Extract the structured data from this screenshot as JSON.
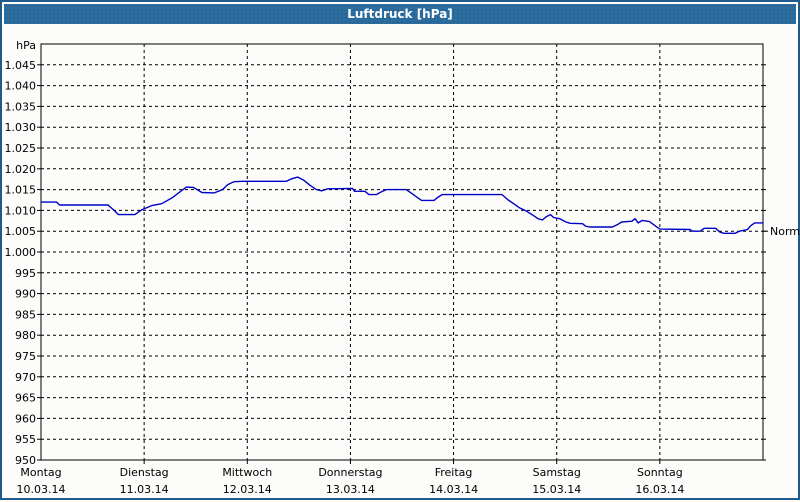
{
  "window": {
    "title": "Luftdruck [hPa]"
  },
  "colors": {
    "titlebar": "#2c6da0",
    "frame_border": "#1e5a8c",
    "background": "#fcfdfa",
    "series_line": "#0000c8",
    "grid": "#000000",
    "text": "#000000",
    "title_text": "#ffffff"
  },
  "chart_data": {
    "type": "line",
    "title": "Luftdruck [hPa]",
    "ylabel": "hPa",
    "ylim": [
      950,
      1050
    ],
    "grid": "dashed",
    "y_ticks": [
      {
        "value": 1045,
        "label": "1.045"
      },
      {
        "value": 1040,
        "label": "1.040"
      },
      {
        "value": 1035,
        "label": "1.035"
      },
      {
        "value": 1030,
        "label": "1.030"
      },
      {
        "value": 1025,
        "label": "1.025"
      },
      {
        "value": 1020,
        "label": "1.020"
      },
      {
        "value": 1015,
        "label": "1.015"
      },
      {
        "value": 1010,
        "label": "1.010"
      },
      {
        "value": 1005,
        "label": "1.005"
      },
      {
        "value": 1000,
        "label": "1.000"
      },
      {
        "value": 995,
        "label": "995"
      },
      {
        "value": 990,
        "label": "990"
      },
      {
        "value": 985,
        "label": "985"
      },
      {
        "value": 980,
        "label": "980"
      },
      {
        "value": 975,
        "label": "975"
      },
      {
        "value": 970,
        "label": "970"
      },
      {
        "value": 965,
        "label": "965"
      },
      {
        "value": 960,
        "label": "960"
      },
      {
        "value": 955,
        "label": "955"
      },
      {
        "value": 950,
        "label": "950"
      }
    ],
    "days": [
      {
        "name": "Montag",
        "date": "10.03.14"
      },
      {
        "name": "Dienstag",
        "date": "11.03.14"
      },
      {
        "name": "Mittwoch",
        "date": "12.03.14"
      },
      {
        "name": "Donnerstag",
        "date": "13.03.14"
      },
      {
        "name": "Freitag",
        "date": "14.03.14"
      },
      {
        "name": "Samstag",
        "date": "15.03.14"
      },
      {
        "name": "Sonntag",
        "date": "16.03.14"
      }
    ],
    "normal_marker": {
      "label": "Normal",
      "value": 1005
    },
    "series": [
      {
        "name": "Luftdruck",
        "unit": "hPa",
        "points": [
          [
            0.0,
            1012
          ],
          [
            0.15,
            1012
          ],
          [
            0.18,
            1011.3
          ],
          [
            0.65,
            1011.3
          ],
          [
            0.71,
            1010
          ],
          [
            0.75,
            1009
          ],
          [
            0.91,
            1009
          ],
          [
            0.98,
            1010.2
          ],
          [
            1.08,
            1011.2
          ],
          [
            1.17,
            1011.6
          ],
          [
            1.27,
            1013
          ],
          [
            1.35,
            1014.5
          ],
          [
            1.41,
            1015.6
          ],
          [
            1.48,
            1015.5
          ],
          [
            1.56,
            1014.3
          ],
          [
            1.68,
            1014.2
          ],
          [
            1.76,
            1015
          ],
          [
            1.81,
            1016.2
          ],
          [
            1.87,
            1016.9
          ],
          [
            1.95,
            1017
          ],
          [
            2.38,
            1017
          ],
          [
            2.43,
            1017.6
          ],
          [
            2.49,
            1018
          ],
          [
            2.55,
            1017.2
          ],
          [
            2.61,
            1016
          ],
          [
            2.67,
            1015
          ],
          [
            2.72,
            1014.7
          ],
          [
            2.78,
            1015.2
          ],
          [
            3.02,
            1015.3
          ],
          [
            3.04,
            1014.6
          ],
          [
            3.14,
            1014.6
          ],
          [
            3.18,
            1013.8
          ],
          [
            3.25,
            1013.8
          ],
          [
            3.31,
            1014.6
          ],
          [
            3.35,
            1015
          ],
          [
            3.54,
            1015
          ],
          [
            3.6,
            1014
          ],
          [
            3.66,
            1012.9
          ],
          [
            3.69,
            1012.4
          ],
          [
            3.81,
            1012.4
          ],
          [
            3.85,
            1013.2
          ],
          [
            3.89,
            1013.8
          ],
          [
            4.47,
            1013.8
          ],
          [
            4.53,
            1012.5
          ],
          [
            4.59,
            1011.5
          ],
          [
            4.64,
            1010.6
          ],
          [
            4.7,
            1009.9
          ],
          [
            4.76,
            1009
          ],
          [
            4.82,
            1008
          ],
          [
            4.86,
            1007.7
          ],
          [
            4.9,
            1008.5
          ],
          [
            4.94,
            1009
          ],
          [
            4.97,
            1008.3
          ],
          [
            5.03,
            1008
          ],
          [
            5.09,
            1007.2
          ],
          [
            5.13,
            1006.9
          ],
          [
            5.25,
            1006.8
          ],
          [
            5.28,
            1006.2
          ],
          [
            5.32,
            1006
          ],
          [
            5.54,
            1006
          ],
          [
            5.59,
            1006.6
          ],
          [
            5.63,
            1007.2
          ],
          [
            5.73,
            1007.4
          ],
          [
            5.76,
            1008
          ],
          [
            5.79,
            1007
          ],
          [
            5.83,
            1007.6
          ],
          [
            5.9,
            1007.3
          ],
          [
            5.96,
            1006.2
          ],
          [
            6.0,
            1005.5
          ],
          [
            6.29,
            1005.4
          ],
          [
            6.32,
            1005
          ],
          [
            6.39,
            1005
          ],
          [
            6.43,
            1005.7
          ],
          [
            6.54,
            1005.7
          ],
          [
            6.58,
            1004.8
          ],
          [
            6.62,
            1004.5
          ],
          [
            6.73,
            1004.5
          ],
          [
            6.77,
            1005
          ],
          [
            6.85,
            1005.4
          ],
          [
            6.88,
            1006.3
          ],
          [
            6.92,
            1007
          ],
          [
            7.0,
            1007
          ]
        ]
      }
    ]
  }
}
